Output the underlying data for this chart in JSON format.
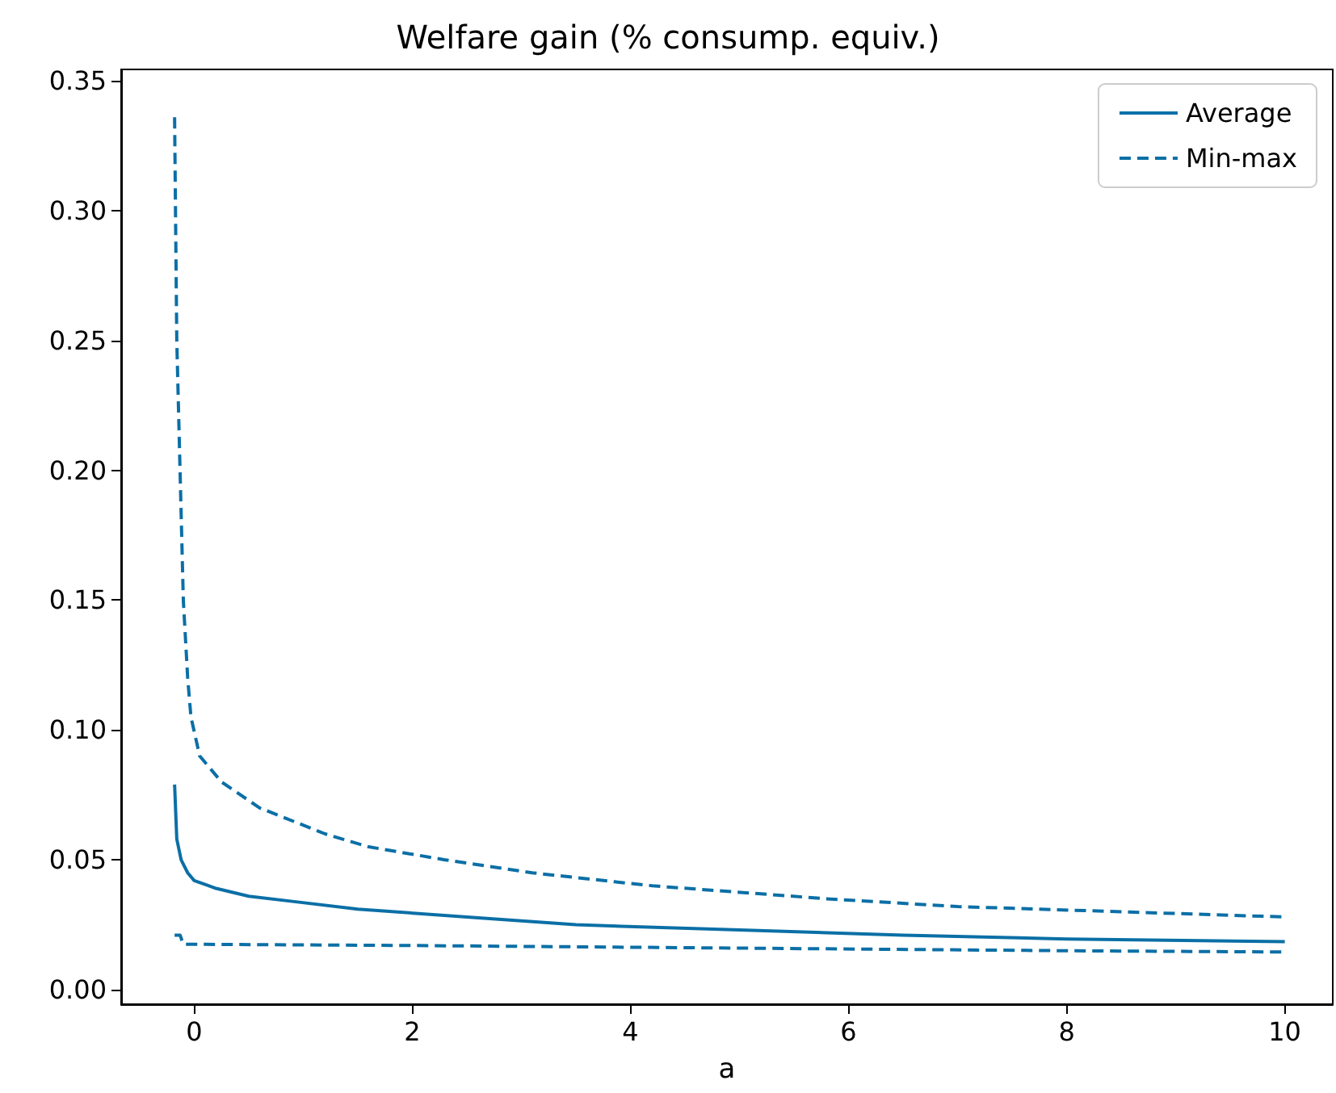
{
  "chart_data": {
    "type": "line",
    "title": "Welfare gain (% consump. equiv.)",
    "xlabel": "a",
    "xlim": [
      -0.67,
      10.44
    ],
    "xticks": [
      0,
      2,
      4,
      6,
      8,
      10
    ],
    "ylim": [
      -0.0056,
      0.3544
    ],
    "yticks": [
      {
        "value": 0,
        "label": "0.00"
      },
      {
        "value": 0.05,
        "label": "0.05"
      },
      {
        "value": 0.1,
        "label": "0.10"
      },
      {
        "value": 0.15,
        "label": "0.15"
      },
      {
        "value": 0.2,
        "label": "0.20"
      },
      {
        "value": 0.25,
        "label": "0.25"
      },
      {
        "value": 0.3,
        "label": "0.30"
      },
      {
        "value": 0.35,
        "label": "0.35"
      }
    ],
    "legend": "top right",
    "grid": false,
    "series": [
      {
        "name": "Average",
        "color": "#0b6fa6",
        "line_style": "solid",
        "x": [
          -0.18,
          -0.16,
          -0.12,
          -0.06,
          0,
          0.2,
          0.5,
          0.9,
          1.5,
          2.5,
          3.5,
          5,
          6.5,
          8,
          10
        ],
        "values": [
          0.079,
          0.058,
          0.05,
          0.045,
          0.042,
          0.039,
          0.036,
          0.034,
          0.031,
          0.028,
          0.025,
          0.023,
          0.021,
          0.0195,
          0.0185
        ]
      },
      {
        "name": "Min-max",
        "color": "#0b6fa6",
        "line_style": "dashed",
        "x": [
          -0.18,
          -0.16,
          -0.13,
          -0.1,
          -0.06,
          -0.03,
          0.05,
          0.25,
          0.6,
          1.2,
          1.6,
          2.3,
          3.1,
          4.2,
          5.8,
          7,
          10
        ],
        "values": [
          0.336,
          0.25,
          0.2,
          0.15,
          0.12,
          0.105,
          0.09,
          0.08,
          0.07,
          0.06,
          0.055,
          0.05,
          0.045,
          0.04,
          0.035,
          0.032,
          0.028
        ]
      },
      {
        "color": "#0b6fa6",
        "line_style": "dashed",
        "x": [
          -0.18,
          -0.13,
          -0.1,
          2,
          5,
          8,
          10
        ],
        "values": [
          0.021,
          0.021,
          0.0175,
          0.017,
          0.016,
          0.015,
          0.0145
        ]
      }
    ]
  }
}
